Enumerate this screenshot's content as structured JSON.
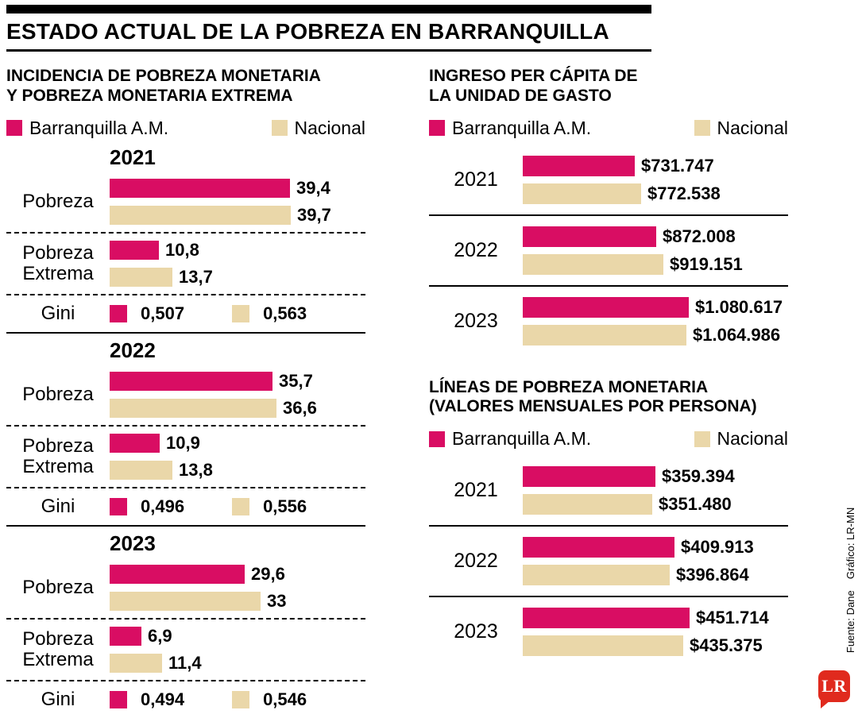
{
  "title": "ESTADO ACTUAL DE LA POBREZA EN BARRANQUILLA",
  "colors": {
    "barranquilla": "#d90d63",
    "nacional": "#ead7a9",
    "logo_red": "#e02a1e",
    "text": "#000000"
  },
  "source": {
    "fuente": "Fuente: Dane",
    "grafico": "Gráfico: LR-MN"
  },
  "logo_text": "LR",
  "chart_data": [
    {
      "type": "bar",
      "title": "INCIDENCIA DE POBREZA MONETARIA Y POBREZA MONETARIA EXTREMA",
      "title_lines": [
        "INCIDENCIA DE POBREZA MONETARIA",
        "Y POBREZA MONETARIA EXTREMA"
      ],
      "legend": [
        "Barranquilla A.M.",
        "Nacional"
      ],
      "legend_position": "top",
      "grid": false,
      "xmax": 40,
      "years": [
        {
          "year": "2021",
          "rows": [
            {
              "kind": "bars",
              "label_lines": [
                "Pobreza"
              ],
              "barranquilla": "39,4",
              "nacional": "39,7"
            },
            {
              "kind": "bars",
              "label_lines": [
                "Pobreza",
                "Extrema"
              ],
              "barranquilla": "10,8",
              "nacional": "13,7"
            },
            {
              "kind": "swatch",
              "label_lines": [
                "Gini"
              ],
              "barranquilla": "0,507",
              "nacional": "0,563"
            }
          ]
        },
        {
          "year": "2022",
          "rows": [
            {
              "kind": "bars",
              "label_lines": [
                "Pobreza"
              ],
              "barranquilla": "35,7",
              "nacional": "36,6"
            },
            {
              "kind": "bars",
              "label_lines": [
                "Pobreza",
                "Extrema"
              ],
              "barranquilla": "10,9",
              "nacional": "13,8"
            },
            {
              "kind": "swatch",
              "label_lines": [
                "Gini"
              ],
              "barranquilla": "0,496",
              "nacional": "0,556"
            }
          ]
        },
        {
          "year": "2023",
          "rows": [
            {
              "kind": "bars",
              "label_lines": [
                "Pobreza"
              ],
              "barranquilla": "29,6",
              "nacional": "33"
            },
            {
              "kind": "bars",
              "label_lines": [
                "Pobreza",
                "Extrema"
              ],
              "barranquilla": "6,9",
              "nacional": "11,4"
            },
            {
              "kind": "swatch",
              "label_lines": [
                "Gini"
              ],
              "barranquilla": "0,494",
              "nacional": "0,546"
            }
          ]
        }
      ]
    },
    {
      "type": "bar",
      "title": "INGRESO PER CÁPITA DE LA UNIDAD DE GASTO",
      "title_lines": [
        "INGRESO PER CÁPITA DE",
        "LA UNIDAD DE GASTO"
      ],
      "legend": [
        "Barranquilla A.M.",
        "Nacional"
      ],
      "legend_position": "top",
      "grid": false,
      "rows": [
        {
          "year": "2021",
          "barranquilla": "$731.747",
          "nacional": "$772.538"
        },
        {
          "year": "2022",
          "barranquilla": "$872.008",
          "nacional": "$919.151"
        },
        {
          "year": "2023",
          "barranquilla": "$1.080.617",
          "nacional": "$1.064.986"
        }
      ]
    },
    {
      "type": "bar",
      "title": "LÍNEAS DE POBREZA MONETARIA (VALORES MENSUALES POR PERSONA)",
      "title_lines": [
        "LÍNEAS DE POBREZA MONETARIA",
        "(VALORES MENSUALES POR PERSONA)"
      ],
      "legend": [
        "Barranquilla A.M.",
        "Nacional"
      ],
      "legend_position": "top",
      "grid": false,
      "rows": [
        {
          "year": "2021",
          "barranquilla": "$359.394",
          "nacional": "$351.480"
        },
        {
          "year": "2022",
          "barranquilla": "$409.913",
          "nacional": "$396.864"
        },
        {
          "year": "2023",
          "barranquilla": "$451.714",
          "nacional": "$435.375"
        }
      ]
    }
  ]
}
